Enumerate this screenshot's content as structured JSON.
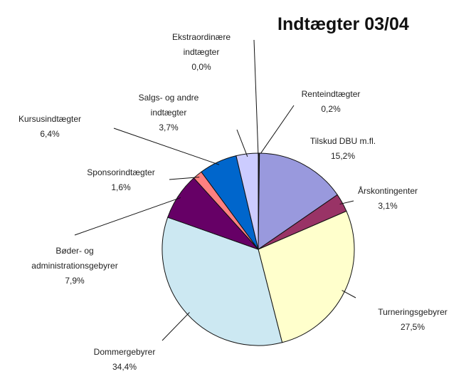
{
  "chart_data": {
    "type": "pie",
    "title": "Indtægter 03/04",
    "categories": [
      "Renteindtægter",
      "Tilskud DBU m.fl.",
      "Årskontingenter",
      "Turneringsgebyrer",
      "Dommergebyrer",
      "Bøder- og\nadministrationsgebyrer",
      "Sponsorindtægter",
      "Kursusindtægter",
      "Salgs- og andre\nindtægter",
      "Ekstraordinære\nindtægter"
    ],
    "values": [
      0.2,
      15.2,
      3.1,
      27.5,
      34.4,
      7.9,
      1.6,
      6.4,
      3.7,
      0.0
    ],
    "value_labels": [
      "0,2%",
      "15,2%",
      "3,1%",
      "27,5%",
      "34,4%",
      "7,9%",
      "1,6%",
      "6,4%",
      "3,7%",
      "0,0%"
    ],
    "colors": [
      "#222222",
      "#9999dd",
      "#993366",
      "#ffffcc",
      "#cce8f2",
      "#660066",
      "#ff8080",
      "#0066cc",
      "#ccccff",
      "#ffffff"
    ]
  }
}
